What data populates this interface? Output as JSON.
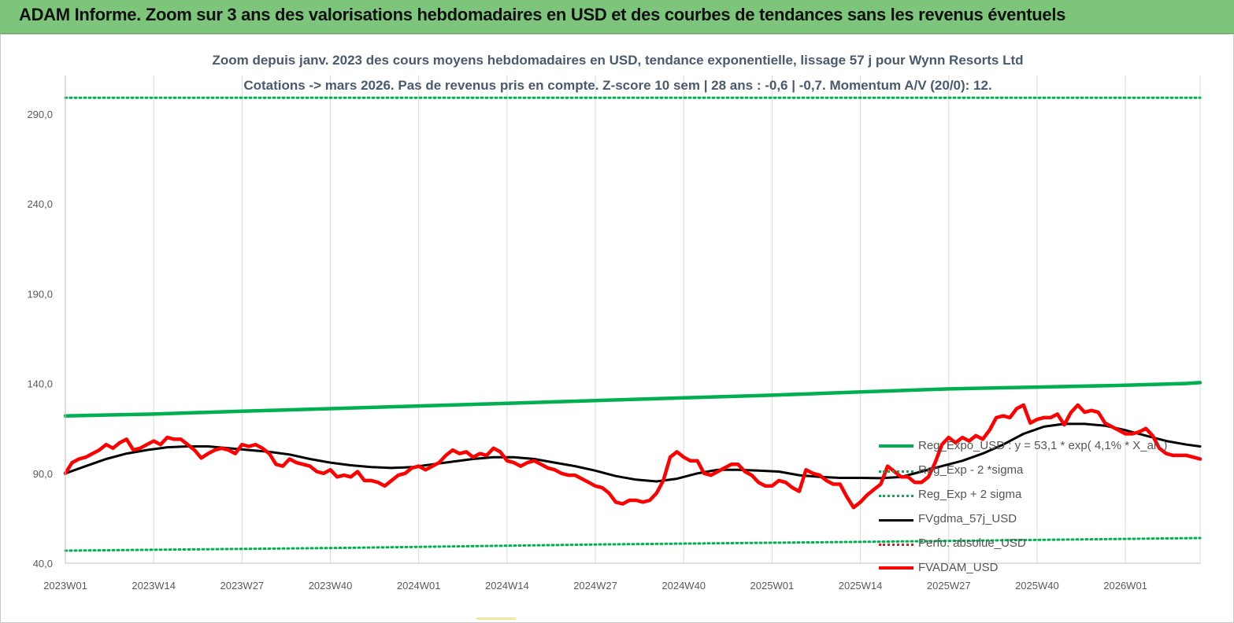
{
  "header": {
    "title": "ADAM Informe. Zoom sur 3 ans des valorisations hebdomadaires en USD et des courbes de tendances sans les revenus éventuels"
  },
  "chart_data": {
    "type": "line",
    "title": "Zoom depuis janv. 2023 des cours moyens hebdomadaires en USD, tendance exponentielle, lissage 57 j pour Wynn Resorts Ltd",
    "subtitle": "Cotations -> mars 2026. Pas de revenus pris en compte. Z-score 10 sem | 28 ans : -0,6 | -0,7. Momentum A/V (20/0): 12.",
    "ylim": [
      40,
      290
    ],
    "yticks": [
      "40,0",
      "90,0",
      "140,0",
      "190,0",
      "240,0",
      "290,0"
    ],
    "xticks": [
      "2023W01",
      "2023W14",
      "2023W27",
      "2023W40",
      "2024W01",
      "2024W14",
      "2024W27",
      "2024W40",
      "2025W01",
      "2025W14",
      "2025W27",
      "2025W40",
      "2026W01"
    ],
    "x_start": "2023W01",
    "x_end": "2026W10",
    "grid": "vertical",
    "legend_position": "right",
    "series": [
      {
        "name": "Reg_Expo_USD : y = 53,1 * exp( 4,1% * X_an )",
        "color": "#00b050",
        "style": "solid",
        "values_sampled": [
          [
            0,
            122.0
          ],
          [
            13,
            123.0
          ],
          [
            26,
            124.6
          ],
          [
            39,
            126.0
          ],
          [
            52,
            127.5
          ],
          [
            65,
            129.0
          ],
          [
            78,
            130.5
          ],
          [
            91,
            132.0
          ],
          [
            104,
            133.5
          ],
          [
            117,
            135.3
          ],
          [
            130,
            137.0
          ],
          [
            143,
            138.0
          ],
          [
            156,
            139.0
          ],
          [
            165,
            140.0
          ],
          [
            167,
            140.5
          ]
        ]
      },
      {
        "name": "Reg_Exp - 2 *sigma",
        "color": "#00b050",
        "style": "dotted",
        "values_sampled": [
          [
            0,
            47.0
          ],
          [
            40,
            48.5
          ],
          [
            80,
            50.5
          ],
          [
            120,
            52.0
          ],
          [
            167,
            54.0
          ]
        ]
      },
      {
        "name": "Reg_Exp + 2 sigma",
        "color": "#00b050",
        "style": "dotted",
        "values_sampled": [
          [
            0,
            299.0
          ],
          [
            167,
            299.0
          ]
        ]
      },
      {
        "name": "FVgdma_57j_USD",
        "color": "#000000",
        "style": "solid",
        "values_sampled": [
          [
            0,
            90
          ],
          [
            3,
            94
          ],
          [
            6,
            98
          ],
          [
            9,
            101
          ],
          [
            12,
            103
          ],
          [
            15,
            104.5
          ],
          [
            18,
            105
          ],
          [
            21,
            105
          ],
          [
            24,
            104
          ],
          [
            27,
            103
          ],
          [
            30,
            102
          ],
          [
            33,
            100.5
          ],
          [
            36,
            98
          ],
          [
            39,
            96
          ],
          [
            42,
            94.5
          ],
          [
            45,
            93.5
          ],
          [
            48,
            93
          ],
          [
            51,
            93.5
          ],
          [
            54,
            95
          ],
          [
            57,
            96.5
          ],
          [
            60,
            98
          ],
          [
            63,
            99
          ],
          [
            66,
            99
          ],
          [
            69,
            98
          ],
          [
            72,
            96
          ],
          [
            75,
            94
          ],
          [
            78,
            91.5
          ],
          [
            81,
            88.5
          ],
          [
            84,
            86.5
          ],
          [
            87,
            85.5
          ],
          [
            90,
            87
          ],
          [
            93,
            90
          ],
          [
            96,
            92
          ],
          [
            99,
            92
          ],
          [
            102,
            91.5
          ],
          [
            105,
            91
          ],
          [
            108,
            89
          ],
          [
            111,
            88
          ],
          [
            114,
            87.5
          ],
          [
            117,
            87.5
          ],
          [
            120,
            87.3
          ],
          [
            123,
            88
          ],
          [
            126,
            91
          ],
          [
            129,
            94
          ],
          [
            132,
            97
          ],
          [
            135,
            101
          ],
          [
            138,
            106
          ],
          [
            141,
            112
          ],
          [
            144,
            116
          ],
          [
            147,
            117.5
          ],
          [
            150,
            117.5
          ],
          [
            153,
            116.5
          ],
          [
            156,
            114
          ],
          [
            159,
            111
          ],
          [
            162,
            108
          ],
          [
            165,
            106
          ],
          [
            167,
            105
          ]
        ]
      },
      {
        "name": "Perfo. absolue_USD",
        "color": "#d62020",
        "style": "dotted",
        "values_sampled": []
      },
      {
        "name": "FVADAM_USD",
        "color": "#ff0000",
        "style": "solid",
        "values_sampled": [
          [
            0,
            90
          ],
          [
            1,
            96
          ],
          [
            2,
            98
          ],
          [
            3,
            99
          ],
          [
            4,
            101
          ],
          [
            5,
            103
          ],
          [
            6,
            106
          ],
          [
            7,
            104
          ],
          [
            8,
            107
          ],
          [
            9,
            109
          ],
          [
            10,
            103
          ],
          [
            11,
            104
          ],
          [
            12,
            106
          ],
          [
            13,
            108
          ],
          [
            14,
            106
          ],
          [
            15,
            110
          ],
          [
            16,
            109
          ],
          [
            17,
            109
          ],
          [
            18,
            106
          ],
          [
            19,
            103
          ],
          [
            20,
            98.5
          ],
          [
            21,
            101
          ],
          [
            22,
            103
          ],
          [
            23,
            104
          ],
          [
            24,
            103
          ],
          [
            25,
            101
          ],
          [
            26,
            106
          ],
          [
            27,
            105
          ],
          [
            28,
            106
          ],
          [
            29,
            104
          ],
          [
            30,
            101
          ],
          [
            31,
            95
          ],
          [
            32,
            94
          ],
          [
            33,
            98
          ],
          [
            34,
            96
          ],
          [
            35,
            95
          ],
          [
            36,
            94
          ],
          [
            37,
            91
          ],
          [
            38,
            90
          ],
          [
            39,
            92
          ],
          [
            40,
            88
          ],
          [
            41,
            89
          ],
          [
            42,
            88
          ],
          [
            43,
            91
          ],
          [
            44,
            86
          ],
          [
            45,
            86
          ],
          [
            46,
            85
          ],
          [
            47,
            83
          ],
          [
            48,
            86
          ],
          [
            49,
            89
          ],
          [
            50,
            90
          ],
          [
            51,
            93
          ],
          [
            52,
            94
          ],
          [
            53,
            92
          ],
          [
            54,
            94
          ],
          [
            55,
            96
          ],
          [
            56,
            100
          ],
          [
            57,
            103
          ],
          [
            58,
            101
          ],
          [
            59,
            102
          ],
          [
            60,
            99
          ],
          [
            61,
            101
          ],
          [
            62,
            100
          ],
          [
            63,
            104
          ],
          [
            64,
            102
          ],
          [
            65,
            97
          ],
          [
            66,
            96
          ],
          [
            67,
            94
          ],
          [
            68,
            96
          ],
          [
            69,
            97
          ],
          [
            70,
            95
          ],
          [
            71,
            93
          ],
          [
            72,
            92
          ],
          [
            73,
            90
          ],
          [
            74,
            89
          ],
          [
            75,
            89
          ],
          [
            76,
            87
          ],
          [
            77,
            85
          ],
          [
            78,
            83
          ],
          [
            79,
            82
          ],
          [
            80,
            79
          ],
          [
            81,
            74
          ],
          [
            82,
            73
          ],
          [
            83,
            75
          ],
          [
            84,
            75
          ],
          [
            85,
            74
          ],
          [
            86,
            75
          ],
          [
            87,
            79
          ],
          [
            88,
            86
          ],
          [
            89,
            99
          ],
          [
            90,
            102
          ],
          [
            91,
            99
          ],
          [
            92,
            97
          ],
          [
            93,
            97
          ],
          [
            94,
            90
          ],
          [
            95,
            89
          ],
          [
            96,
            91
          ],
          [
            97,
            93
          ],
          [
            98,
            95
          ],
          [
            99,
            95
          ],
          [
            100,
            91
          ],
          [
            101,
            89
          ],
          [
            102,
            85
          ],
          [
            103,
            83
          ],
          [
            104,
            83
          ],
          [
            105,
            86
          ],
          [
            106,
            85
          ],
          [
            107,
            82
          ],
          [
            108,
            80
          ],
          [
            109,
            92
          ],
          [
            110,
            90
          ],
          [
            111,
            89
          ],
          [
            112,
            86
          ],
          [
            113,
            84
          ],
          [
            114,
            84
          ],
          [
            115,
            77
          ],
          [
            116,
            71
          ],
          [
            117,
            74
          ],
          [
            118,
            78
          ],
          [
            119,
            81
          ],
          [
            120,
            84
          ],
          [
            121,
            94
          ],
          [
            122,
            91
          ],
          [
            123,
            88
          ],
          [
            124,
            88
          ],
          [
            125,
            85
          ],
          [
            126,
            85
          ],
          [
            127,
            88
          ],
          [
            128,
            96
          ],
          [
            129,
            106
          ],
          [
            130,
            110
          ],
          [
            131,
            107
          ],
          [
            132,
            110
          ],
          [
            133,
            108
          ],
          [
            134,
            111
          ],
          [
            135,
            109
          ],
          [
            136,
            114
          ],
          [
            137,
            121
          ],
          [
            138,
            122
          ],
          [
            139,
            121
          ],
          [
            140,
            126
          ],
          [
            141,
            128
          ],
          [
            142,
            118
          ],
          [
            143,
            120
          ],
          [
            144,
            121
          ],
          [
            145,
            121
          ],
          [
            146,
            123
          ],
          [
            147,
            117
          ],
          [
            148,
            124
          ],
          [
            149,
            128
          ],
          [
            150,
            124
          ],
          [
            151,
            125
          ],
          [
            152,
            124
          ],
          [
            153,
            118
          ],
          [
            154,
            116
          ],
          [
            155,
            114
          ],
          [
            156,
            112
          ],
          [
            157,
            112
          ],
          [
            158,
            113
          ],
          [
            159,
            115
          ],
          [
            160,
            111
          ],
          [
            161,
            104
          ],
          [
            162,
            101
          ],
          [
            163,
            100
          ],
          [
            164,
            100
          ],
          [
            165,
            100
          ],
          [
            166,
            99
          ],
          [
            167,
            98
          ]
        ]
      }
    ]
  }
}
